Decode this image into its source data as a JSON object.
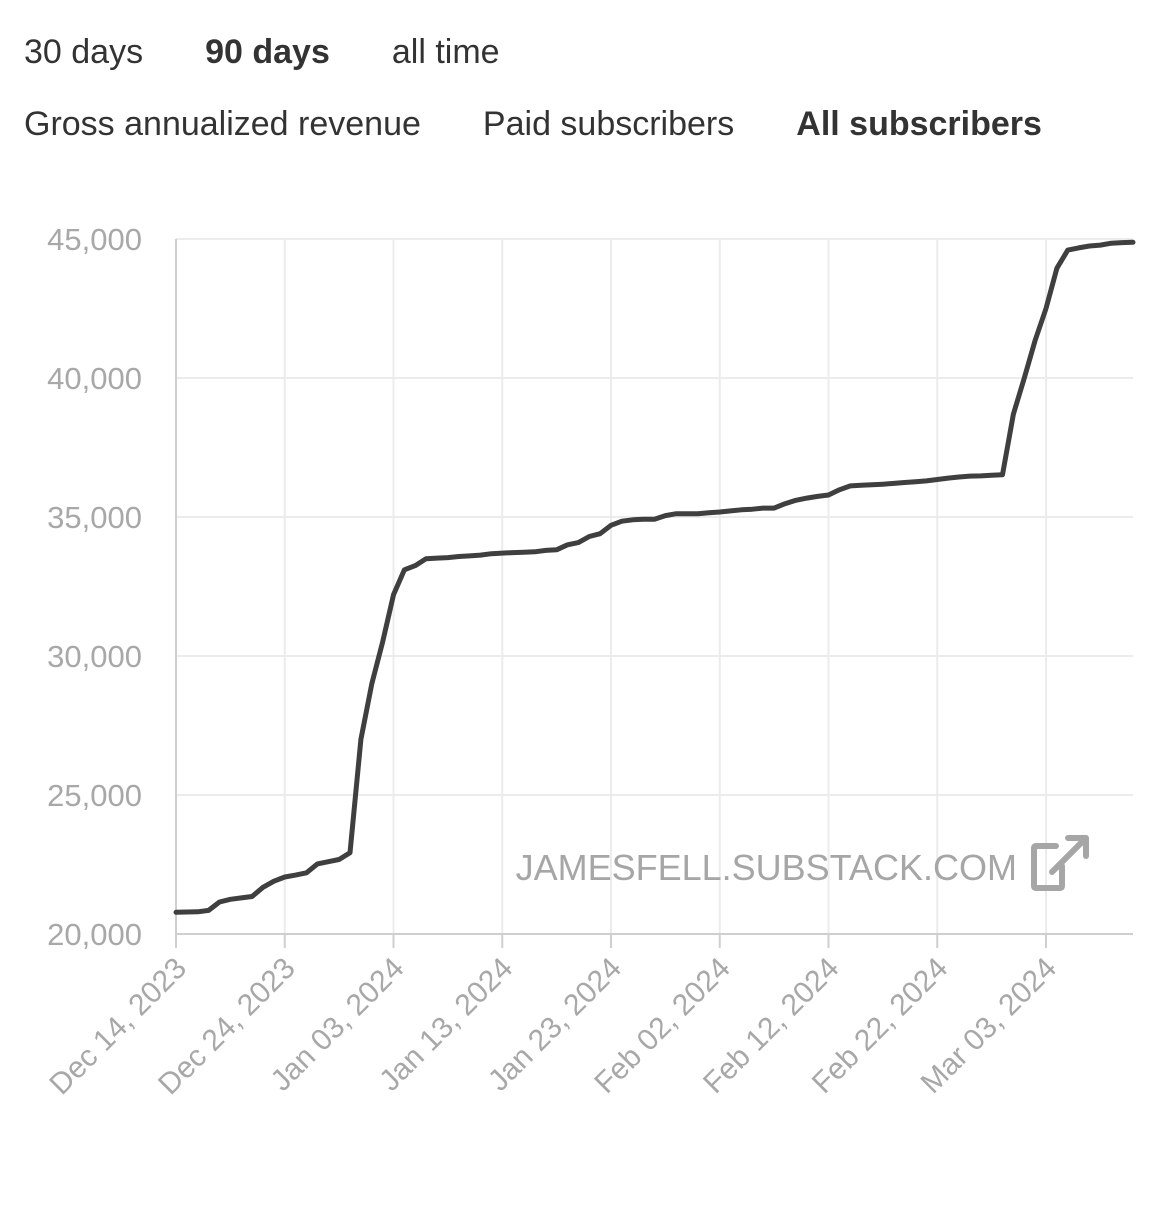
{
  "range_tabs": [
    {
      "label": "30 days",
      "active": false
    },
    {
      "label": "90 days",
      "active": true
    },
    {
      "label": "all time",
      "active": false
    }
  ],
  "metric_tabs": [
    {
      "label": "Gross annualized revenue",
      "active": false
    },
    {
      "label": "Paid subscribers",
      "active": false
    },
    {
      "label": "All subscribers",
      "active": true
    }
  ],
  "watermark": {
    "text": "JAMESFELL.SUBSTACK.COM",
    "icon": "external-link-icon"
  },
  "colors": {
    "line": "#3f3f3f",
    "grid": "#ececec",
    "axis": "#cfcfcf",
    "tick": "#a8a8a8"
  },
  "chart_data": {
    "type": "line",
    "title": "",
    "xlabel": "",
    "ylabel": "",
    "ylim": [
      20000,
      45000
    ],
    "yticks": [
      20000,
      25000,
      30000,
      35000,
      40000,
      45000
    ],
    "ytick_labels": [
      "20,000",
      "25,000",
      "30,000",
      "35,000",
      "40,000",
      "45,000"
    ],
    "xlim": [
      "2023-12-14",
      "2024-03-11"
    ],
    "xticks": [
      "2023-12-14",
      "2023-12-24",
      "2024-01-03",
      "2024-01-13",
      "2024-01-23",
      "2024-02-02",
      "2024-02-12",
      "2024-02-22",
      "2024-03-03"
    ],
    "xtick_labels": [
      "Dec 14, 2023",
      "Dec 24, 2023",
      "Jan 03, 2024",
      "Jan 13, 2024",
      "Jan 23, 2024",
      "Feb 02, 2024",
      "Feb 12, 2024",
      "Feb 22, 2024",
      "Mar 03, 2024"
    ],
    "grid": true,
    "series": [
      {
        "x": [
          "2023-12-14",
          "2023-12-15",
          "2023-12-16",
          "2023-12-17",
          "2023-12-18",
          "2023-12-19",
          "2023-12-20",
          "2023-12-21",
          "2023-12-22",
          "2023-12-23",
          "2023-12-24",
          "2023-12-25",
          "2023-12-26",
          "2023-12-27",
          "2023-12-28",
          "2023-12-29",
          "2023-12-30",
          "2023-12-31",
          "2024-01-01",
          "2024-01-02",
          "2024-01-03",
          "2024-01-04",
          "2024-01-05",
          "2024-01-06",
          "2024-01-07",
          "2024-01-08",
          "2024-01-09",
          "2024-01-10",
          "2024-01-11",
          "2024-01-12",
          "2024-01-13",
          "2024-01-14",
          "2024-01-15",
          "2024-01-16",
          "2024-01-17",
          "2024-01-18",
          "2024-01-19",
          "2024-01-20",
          "2024-01-21",
          "2024-01-22",
          "2024-01-23",
          "2024-01-24",
          "2024-01-25",
          "2024-01-26",
          "2024-01-27",
          "2024-01-28",
          "2024-01-29",
          "2024-01-30",
          "2024-01-31",
          "2024-02-01",
          "2024-02-02",
          "2024-02-03",
          "2024-02-04",
          "2024-02-05",
          "2024-02-06",
          "2024-02-07",
          "2024-02-08",
          "2024-02-09",
          "2024-02-10",
          "2024-02-11",
          "2024-02-12",
          "2024-02-13",
          "2024-02-14",
          "2024-02-15",
          "2024-02-16",
          "2024-02-17",
          "2024-02-18",
          "2024-02-19",
          "2024-02-20",
          "2024-02-21",
          "2024-02-22",
          "2024-02-23",
          "2024-02-24",
          "2024-02-25",
          "2024-02-26",
          "2024-02-27",
          "2024-02-28",
          "2024-02-29",
          "2024-03-01",
          "2024-03-02",
          "2024-03-03",
          "2024-03-04",
          "2024-03-05",
          "2024-03-06",
          "2024-03-07",
          "2024-03-08",
          "2024-03-09",
          "2024-03-10",
          "2024-03-11"
        ],
        "y": [
          20780,
          20790,
          20800,
          20850,
          21150,
          21250,
          21300,
          21350,
          21680,
          21900,
          22050,
          22120,
          22200,
          22520,
          22600,
          22680,
          22920,
          27000,
          29000,
          30500,
          32200,
          33100,
          33250,
          33500,
          33520,
          33540,
          33580,
          33600,
          33630,
          33680,
          33700,
          33720,
          33730,
          33750,
          33800,
          33820,
          34000,
          34080,
          34300,
          34400,
          34700,
          34850,
          34900,
          34920,
          34920,
          35050,
          35120,
          35120,
          35120,
          35150,
          35180,
          35220,
          35260,
          35280,
          35320,
          35320,
          35480,
          35600,
          35680,
          35740,
          35790,
          35980,
          36120,
          36140,
          36160,
          36180,
          36210,
          36240,
          36270,
          36300,
          36350,
          36400,
          36440,
          36470,
          36480,
          36500,
          36520,
          38700,
          40000,
          41350,
          42500,
          43950,
          44600,
          44680,
          44750,
          44780,
          44850,
          44870,
          44880
        ]
      }
    ]
  }
}
